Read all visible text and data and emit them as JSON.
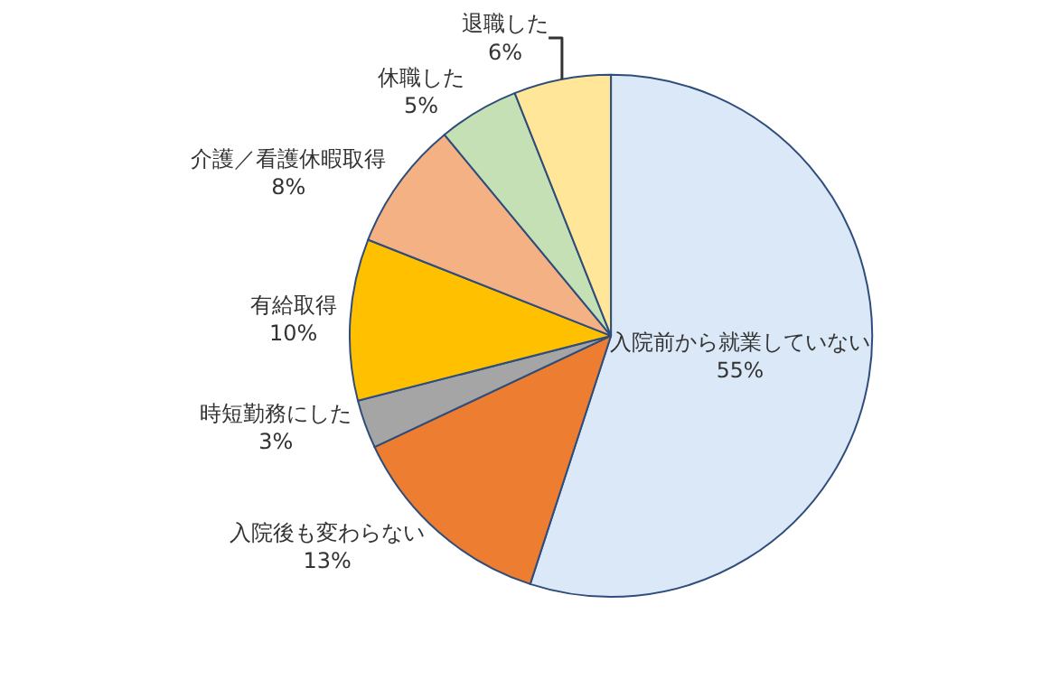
{
  "chart_data": {
    "type": "pie",
    "categories": [
      "入院前から就業していない",
      "入院後も変わらない",
      "時短勤務にした",
      "有給取得",
      "介護／看護休暇取得",
      "休職した",
      "退職した"
    ],
    "values": [
      55,
      13,
      3,
      10,
      8,
      5,
      6
    ],
    "value_labels": [
      "55%",
      "13%",
      "3%",
      "10%",
      "8%",
      "5%",
      "6%"
    ],
    "colors": [
      "#dae8f7",
      "#ed7d31",
      "#a5a5a5",
      "#ffc000",
      "#f4b183",
      "#c5e0b4",
      "#ffe699"
    ],
    "legend": false
  }
}
